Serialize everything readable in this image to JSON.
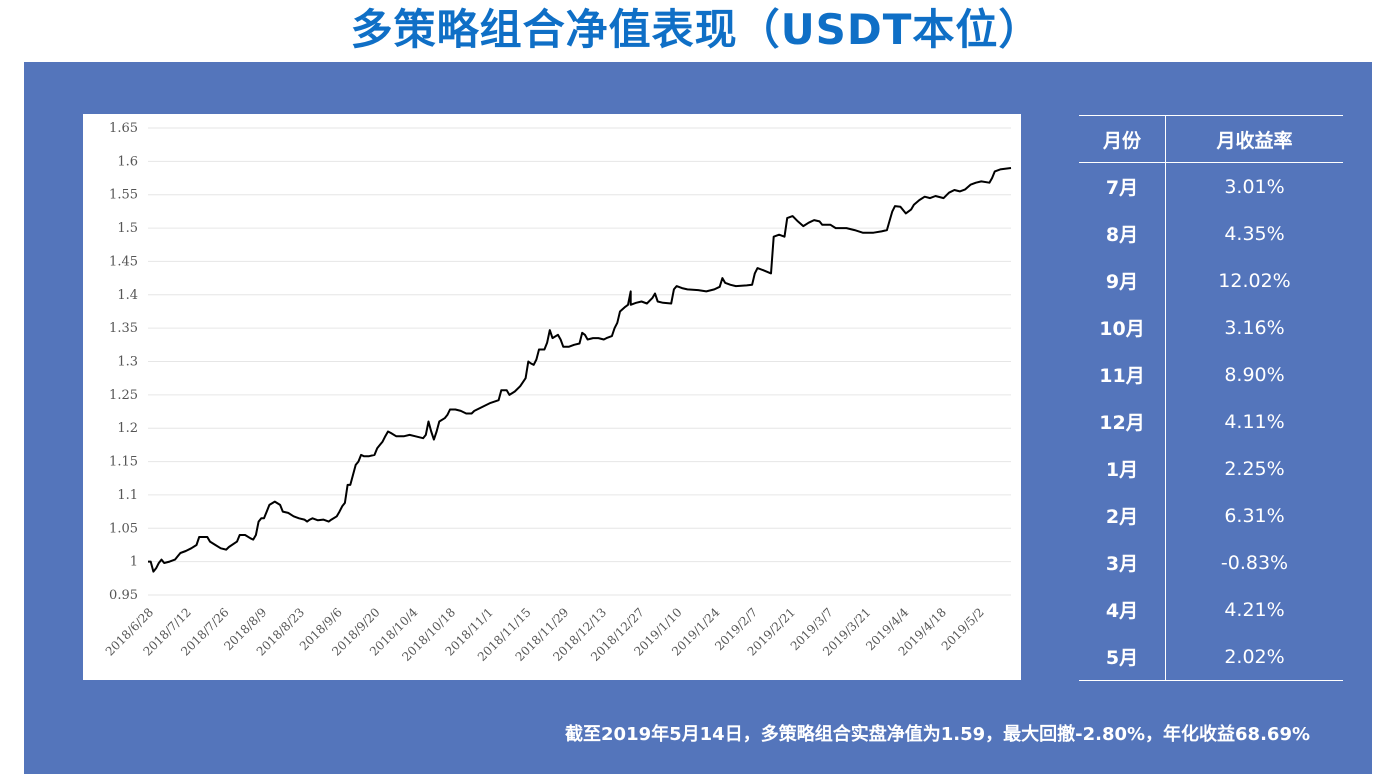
{
  "title": "多策略组合净值表现（USDT本位）",
  "table": {
    "headers": {
      "month": "月份",
      "rate": "月收益率"
    },
    "rows": [
      {
        "month": "7月",
        "rate": "3.01%"
      },
      {
        "month": "8月",
        "rate": "4.35%"
      },
      {
        "month": "9月",
        "rate": "12.02%"
      },
      {
        "month": "10月",
        "rate": "3.16%"
      },
      {
        "month": "11月",
        "rate": "8.90%"
      },
      {
        "month": "12月",
        "rate": "4.11%"
      },
      {
        "month": "1月",
        "rate": "2.25%"
      },
      {
        "month": "2月",
        "rate": "6.31%"
      },
      {
        "month": "3月",
        "rate": "-0.83%"
      },
      {
        "month": "4月",
        "rate": "4.21%"
      },
      {
        "month": "5月",
        "rate": "2.02%"
      }
    ]
  },
  "footnote": "截至2019年5月14日，多策略组合实盘净值为1.59，最大回撤-2.80%，年化收益68.69%",
  "colors": {
    "title": "#0f6fc6",
    "panel": "#5475bb",
    "line": "#000000",
    "grid": "#e6e6e6"
  },
  "chart_data": {
    "type": "line",
    "title": "",
    "xlabel": "",
    "ylabel": "",
    "ylim": [
      0.95,
      1.65
    ],
    "ytick_step": 0.05,
    "xlim": [
      "2018-06-28",
      "2019-05-14"
    ],
    "grid": true,
    "x_tick_labels": [
      "2018/6/28",
      "2018/7/12",
      "2018/7/26",
      "2018/8/9",
      "2018/8/23",
      "2018/9/6",
      "2018/9/20",
      "2018/10/4",
      "2018/10/18",
      "2018/11/1",
      "2018/11/15",
      "2018/11/29",
      "2018/12/13",
      "2018/12/27",
      "2019/1/10",
      "2019/1/24",
      "2019/2/7",
      "2019/2/21",
      "2019/3/7",
      "2019/3/21",
      "2019/4/4",
      "2019/4/18",
      "2019/5/2"
    ],
    "series": [
      {
        "points": [
          [
            "2018-06-28",
            1.0
          ],
          [
            "2018-06-29",
            1.0
          ],
          [
            "2018-06-30",
            0.985
          ],
          [
            "2018-07-01",
            0.99
          ],
          [
            "2018-07-02",
            0.998
          ],
          [
            "2018-07-03",
            1.003
          ],
          [
            "2018-07-04",
            0.998
          ],
          [
            "2018-07-06",
            1.0
          ],
          [
            "2018-07-08",
            1.003
          ],
          [
            "2018-07-09",
            1.008
          ],
          [
            "2018-07-10",
            1.013
          ],
          [
            "2018-07-12",
            1.016
          ],
          [
            "2018-07-14",
            1.02
          ],
          [
            "2018-07-16",
            1.025
          ],
          [
            "2018-07-17",
            1.037
          ],
          [
            "2018-07-20",
            1.037
          ],
          [
            "2018-07-21",
            1.03
          ],
          [
            "2018-07-23",
            1.025
          ],
          [
            "2018-07-25",
            1.02
          ],
          [
            "2018-07-27",
            1.018
          ],
          [
            "2018-07-28",
            1.022
          ],
          [
            "2018-07-31",
            1.03
          ],
          [
            "2018-08-01",
            1.04
          ],
          [
            "2018-08-03",
            1.04
          ],
          [
            "2018-08-05",
            1.035
          ],
          [
            "2018-08-06",
            1.033
          ],
          [
            "2018-08-07",
            1.04
          ],
          [
            "2018-08-08",
            1.06
          ],
          [
            "2018-08-09",
            1.065
          ],
          [
            "2018-08-10",
            1.065
          ],
          [
            "2018-08-11",
            1.075
          ],
          [
            "2018-08-12",
            1.085
          ],
          [
            "2018-08-14",
            1.09
          ],
          [
            "2018-08-16",
            1.085
          ],
          [
            "2018-08-17",
            1.075
          ],
          [
            "2018-08-19",
            1.073
          ],
          [
            "2018-08-21",
            1.068
          ],
          [
            "2018-08-23",
            1.065
          ],
          [
            "2018-08-25",
            1.063
          ],
          [
            "2018-08-26",
            1.06
          ],
          [
            "2018-08-27",
            1.063
          ],
          [
            "2018-08-28",
            1.065
          ],
          [
            "2018-08-30",
            1.062
          ],
          [
            "2018-09-01",
            1.063
          ],
          [
            "2018-09-03",
            1.06
          ],
          [
            "2018-09-04",
            1.063
          ],
          [
            "2018-09-06",
            1.068
          ],
          [
            "2018-09-07",
            1.075
          ],
          [
            "2018-09-08",
            1.083
          ],
          [
            "2018-09-09",
            1.088
          ],
          [
            "2018-09-10",
            1.115
          ],
          [
            "2018-09-11",
            1.115
          ],
          [
            "2018-09-12",
            1.13
          ],
          [
            "2018-09-13",
            1.145
          ],
          [
            "2018-09-14",
            1.15
          ],
          [
            "2018-09-15",
            1.16
          ],
          [
            "2018-09-16",
            1.158
          ],
          [
            "2018-09-18",
            1.158
          ],
          [
            "2018-09-20",
            1.16
          ],
          [
            "2018-09-21",
            1.17
          ],
          [
            "2018-09-22",
            1.175
          ],
          [
            "2018-09-23",
            1.18
          ],
          [
            "2018-09-24",
            1.188
          ],
          [
            "2018-09-25",
            1.195
          ],
          [
            "2018-09-26",
            1.193
          ],
          [
            "2018-09-28",
            1.188
          ],
          [
            "2018-10-01",
            1.188
          ],
          [
            "2018-10-03",
            1.19
          ],
          [
            "2018-10-05",
            1.188
          ],
          [
            "2018-10-08",
            1.185
          ],
          [
            "2018-10-09",
            1.19
          ],
          [
            "2018-10-10",
            1.21
          ],
          [
            "2018-10-11",
            1.195
          ],
          [
            "2018-10-12",
            1.183
          ],
          [
            "2018-10-13",
            1.195
          ],
          [
            "2018-10-14",
            1.21
          ],
          [
            "2018-10-16",
            1.215
          ],
          [
            "2018-10-17",
            1.22
          ],
          [
            "2018-10-18",
            1.228
          ],
          [
            "2018-10-20",
            1.228
          ],
          [
            "2018-10-22",
            1.226
          ],
          [
            "2018-10-24",
            1.222
          ],
          [
            "2018-10-26",
            1.222
          ],
          [
            "2018-10-27",
            1.226
          ],
          [
            "2018-10-30",
            1.232
          ],
          [
            "2018-11-02",
            1.238
          ],
          [
            "2018-11-05",
            1.242
          ],
          [
            "2018-11-06",
            1.257
          ],
          [
            "2018-11-08",
            1.257
          ],
          [
            "2018-11-09",
            1.25
          ],
          [
            "2018-11-11",
            1.255
          ],
          [
            "2018-11-13",
            1.263
          ],
          [
            "2018-11-15",
            1.275
          ],
          [
            "2018-11-16",
            1.3
          ],
          [
            "2018-11-17",
            1.297
          ],
          [
            "2018-11-18",
            1.295
          ],
          [
            "2018-11-19",
            1.303
          ],
          [
            "2018-11-20",
            1.318
          ],
          [
            "2018-11-22",
            1.318
          ],
          [
            "2018-11-23",
            1.328
          ],
          [
            "2018-11-24",
            1.347
          ],
          [
            "2018-11-25",
            1.335
          ],
          [
            "2018-11-27",
            1.34
          ],
          [
            "2018-11-28",
            1.333
          ],
          [
            "2018-11-29",
            1.322
          ],
          [
            "2018-12-01",
            1.322
          ],
          [
            "2018-12-03",
            1.325
          ],
          [
            "2018-12-05",
            1.327
          ],
          [
            "2018-12-06",
            1.343
          ],
          [
            "2018-12-07",
            1.34
          ],
          [
            "2018-12-08",
            1.333
          ],
          [
            "2018-12-10",
            1.335
          ],
          [
            "2018-12-12",
            1.335
          ],
          [
            "2018-12-14",
            1.333
          ],
          [
            "2018-12-15",
            1.335
          ],
          [
            "2018-12-17",
            1.338
          ],
          [
            "2018-12-18",
            1.35
          ],
          [
            "2018-12-19",
            1.358
          ],
          [
            "2018-12-20",
            1.375
          ],
          [
            "2018-12-22",
            1.382
          ],
          [
            "2018-12-23",
            1.385
          ],
          [
            "2018-12-24",
            1.405
          ],
          [
            "2018-12-24",
            1.385
          ],
          [
            "2018-12-26",
            1.388
          ],
          [
            "2018-12-28",
            1.39
          ],
          [
            "2018-12-30",
            1.387
          ],
          [
            "2019-01-01",
            1.395
          ],
          [
            "2019-01-02",
            1.402
          ],
          [
            "2019-01-03",
            1.39
          ],
          [
            "2019-01-05",
            1.388
          ],
          [
            "2019-01-08",
            1.387
          ],
          [
            "2019-01-09",
            1.408
          ],
          [
            "2019-01-10",
            1.413
          ],
          [
            "2019-01-12",
            1.41
          ],
          [
            "2019-01-14",
            1.408
          ],
          [
            "2019-01-18",
            1.407
          ],
          [
            "2019-01-21",
            1.405
          ],
          [
            "2019-01-24",
            1.408
          ],
          [
            "2019-01-26",
            1.412
          ],
          [
            "2019-01-27",
            1.425
          ],
          [
            "2019-01-28",
            1.418
          ],
          [
            "2019-01-30",
            1.415
          ],
          [
            "2019-02-01",
            1.413
          ],
          [
            "2019-02-05",
            1.414
          ],
          [
            "2019-02-07",
            1.415
          ],
          [
            "2019-02-08",
            1.432
          ],
          [
            "2019-02-09",
            1.44
          ],
          [
            "2019-02-11",
            1.437
          ],
          [
            "2019-02-14",
            1.432
          ],
          [
            "2019-02-15",
            1.487
          ],
          [
            "2019-02-17",
            1.49
          ],
          [
            "2019-02-19",
            1.487
          ],
          [
            "2019-02-20",
            1.515
          ],
          [
            "2019-02-22",
            1.518
          ],
          [
            "2019-02-24",
            1.51
          ],
          [
            "2019-02-26",
            1.503
          ],
          [
            "2019-02-28",
            1.508
          ],
          [
            "2019-03-02",
            1.512
          ],
          [
            "2019-03-04",
            1.51
          ],
          [
            "2019-03-05",
            1.505
          ],
          [
            "2019-03-08",
            1.505
          ],
          [
            "2019-03-10",
            1.5
          ],
          [
            "2019-03-14",
            1.5
          ],
          [
            "2019-03-17",
            1.497
          ],
          [
            "2019-03-20",
            1.493
          ],
          [
            "2019-03-24",
            1.493
          ],
          [
            "2019-03-27",
            1.495
          ],
          [
            "2019-03-29",
            1.497
          ],
          [
            "2019-03-31",
            1.525
          ],
          [
            "2019-04-01",
            1.533
          ],
          [
            "2019-04-03",
            1.532
          ],
          [
            "2019-04-05",
            1.522
          ],
          [
            "2019-04-07",
            1.528
          ],
          [
            "2019-04-08",
            1.535
          ],
          [
            "2019-04-10",
            1.542
          ],
          [
            "2019-04-12",
            1.547
          ],
          [
            "2019-04-14",
            1.545
          ],
          [
            "2019-04-16",
            1.548
          ],
          [
            "2019-04-19",
            1.545
          ],
          [
            "2019-04-21",
            1.553
          ],
          [
            "2019-04-23",
            1.557
          ],
          [
            "2019-04-25",
            1.555
          ],
          [
            "2019-04-27",
            1.558
          ],
          [
            "2019-04-29",
            1.565
          ],
          [
            "2019-05-01",
            1.568
          ],
          [
            "2019-05-03",
            1.57
          ],
          [
            "2019-05-06",
            1.568
          ],
          [
            "2019-05-07",
            1.575
          ],
          [
            "2019-05-08",
            1.585
          ],
          [
            "2019-05-10",
            1.588
          ],
          [
            "2019-05-14",
            1.59
          ]
        ]
      }
    ]
  }
}
